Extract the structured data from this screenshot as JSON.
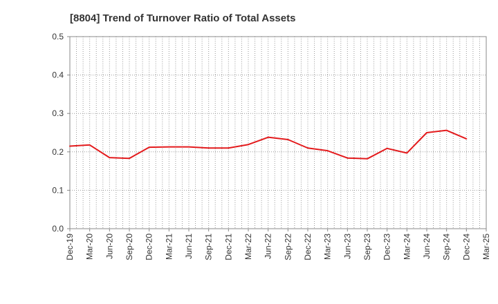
{
  "chart_data": {
    "type": "line",
    "title": "[8804]  Trend of Turnover Ratio of Total Assets",
    "xlabel": "",
    "ylabel": "",
    "ylim": [
      0,
      0.5
    ],
    "y_ticks": [
      "0.0",
      "0.1",
      "0.2",
      "0.3",
      "0.4",
      "0.5"
    ],
    "x_ticks": [
      "Dec-19",
      "Mar-20",
      "Jun-20",
      "Sep-20",
      "Dec-20",
      "Mar-21",
      "Jun-21",
      "Sep-21",
      "Dec-21",
      "Mar-22",
      "Jun-22",
      "Sep-22",
      "Dec-22",
      "Mar-23",
      "Jun-23",
      "Sep-23",
      "Dec-23",
      "Mar-24",
      "Jun-24",
      "Sep-24",
      "Dec-24",
      "Mar-25"
    ],
    "grid": true,
    "line_color": "#e31a1c",
    "series": [
      {
        "values": [
          0.215,
          0.218,
          0.185,
          0.183,
          0.212,
          0.213,
          0.213,
          0.21,
          0.21,
          0.219,
          0.238,
          0.232,
          0.21,
          0.203,
          0.184,
          0.182,
          0.209,
          0.197,
          0.25,
          0.256,
          0.234
        ]
      }
    ]
  }
}
